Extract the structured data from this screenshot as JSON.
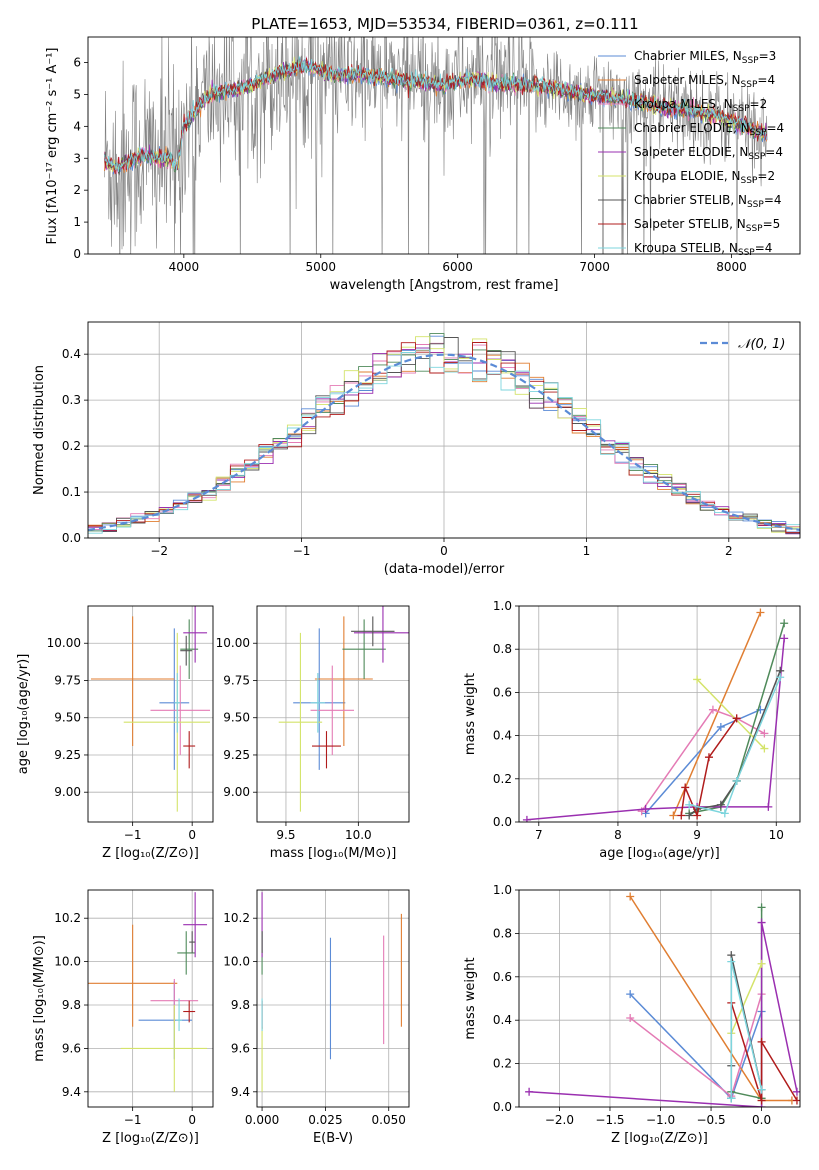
{
  "figure": {
    "title": "PLATE=1653, MJD=53534, FIBERID=0361, z=0.111"
  },
  "series_colors": [
    "#5b8bd6",
    "#e07e32",
    "#e47bb5",
    "#4f8a5a",
    "#9a2fb0",
    "#d4e36a",
    "#555555",
    "#b01c1c",
    "#7dd5dd"
  ],
  "chart_data": [
    {
      "id": "spectrum",
      "type": "line",
      "xlabel": "wavelength [Angstrom, rest frame]",
      "xlim": [
        3300,
        8500
      ],
      "ylim": [
        0,
        6.8
      ],
      "xticks": [
        4000,
        5000,
        6000,
        7000,
        8000
      ],
      "yticks": [
        0,
        1,
        2,
        3,
        4,
        5,
        6
      ],
      "grid": false,
      "legend": "right",
      "continuum": {
        "x": [
          3420,
          3500,
          3600,
          3700,
          3800,
          3900,
          3950,
          4000,
          4100,
          4200,
          4300,
          4500,
          4700,
          4900,
          5100,
          5300,
          5500,
          5700,
          5900,
          6100,
          6300,
          6500,
          6700,
          6900,
          7100,
          7300,
          7500,
          7700,
          7900,
          8100,
          8260
        ],
        "y": [
          2.9,
          2.7,
          2.9,
          3.1,
          3.0,
          3.0,
          2.7,
          4.0,
          4.6,
          5.0,
          5.1,
          5.3,
          5.7,
          5.9,
          5.6,
          5.6,
          5.5,
          5.4,
          5.3,
          5.5,
          5.3,
          5.3,
          5.2,
          5.0,
          4.9,
          4.8,
          4.6,
          4.5,
          4.3,
          4.0,
          3.75
        ]
      },
      "series": [
        {
          "name": "Chabrier MILES, N",
          "sub": "SSP",
          "n": "=3"
        },
        {
          "name": "Salpeter MILES, N",
          "sub": "SSP",
          "n": "=4"
        },
        {
          "name": "Kroupa MILES, N",
          "sub": "SSP",
          "n": "=2"
        },
        {
          "name": "Chabrier ELODIE, N",
          "sub": "SSP",
          "n": "=4"
        },
        {
          "name": "Salpeter ELODIE, N",
          "sub": "SSP",
          "n": "=4"
        },
        {
          "name": "Kroupa ELODIE, N",
          "sub": "SSP",
          "n": "=2"
        },
        {
          "name": "Chabrier STELIB, N",
          "sub": "SSP",
          "n": "=4"
        },
        {
          "name": "Salpeter STELIB, N",
          "sub": "SSP",
          "n": "=5"
        },
        {
          "name": "Kroupa STELIB, N",
          "sub": "SSP",
          "n": "=4"
        }
      ]
    },
    {
      "id": "residuals",
      "type": "step",
      "xlabel": "(data-model)/error",
      "ylabel": "Normed distribution",
      "xlim": [
        -2.5,
        2.5
      ],
      "ylim": [
        0,
        0.47
      ],
      "xticks": [
        -2,
        -1,
        0,
        1,
        2
      ],
      "yticks": [
        0.0,
        0.1,
        0.2,
        0.3,
        0.4
      ],
      "grid": true,
      "legend": "top-right",
      "reference": {
        "name": "𝒩(0, 1)",
        "mean": 0,
        "sigma": 1,
        "color": "#5b8bd6"
      },
      "bin_width": 0.1
    },
    {
      "id": "age_vs_Z",
      "type": "errorbar",
      "xlabel": "Z [log₁₀(Z/Z⊙)]",
      "xlim": [
        -1.75,
        0.35
      ],
      "ylim": [
        8.8,
        10.25
      ],
      "xticks": [
        -1,
        0
      ],
      "yticks": [
        9.0,
        9.25,
        9.5,
        9.75,
        10.0
      ],
      "grid": true,
      "points": [
        {
          "x": -0.3,
          "y": 9.6,
          "xerr": [
            0.25,
            0.25
          ],
          "yerr": [
            0.45,
            0.5
          ]
        },
        {
          "x": -1.0,
          "y": 9.76,
          "xerr": [
            0.7,
            0.7
          ],
          "yerr": [
            0.45,
            0.42
          ]
        },
        {
          "x": -0.2,
          "y": 9.55,
          "xerr": [
            0.5,
            0.5
          ],
          "yerr": [
            0.3,
            0.3
          ]
        },
        {
          "x": -0.05,
          "y": 9.96,
          "xerr": [
            0.15,
            0.15
          ],
          "yerr": [
            0.2,
            0.2
          ]
        },
        {
          "x": 0.05,
          "y": 10.07,
          "xerr": [
            0.2,
            0.2
          ],
          "yerr": [
            0.2,
            0.2
          ]
        },
        {
          "x": -0.25,
          "y": 9.47,
          "xerr": [
            0.9,
            0.55
          ],
          "yerr": [
            0.6,
            0.6
          ]
        },
        {
          "x": -0.1,
          "y": 9.95,
          "xerr": [
            0.1,
            0.1
          ],
          "yerr": [
            0.1,
            0.1
          ]
        },
        {
          "x": -0.05,
          "y": 9.31,
          "xerr": [
            0.1,
            0.1
          ],
          "yerr": [
            0.15,
            0.1
          ]
        },
        {
          "x": -0.25,
          "y": 9.6,
          "xerr": [
            0.05,
            0.05
          ],
          "yerr": [
            0.2,
            0.2
          ]
        }
      ]
    },
    {
      "id": "age_vs_mass",
      "type": "errorbar",
      "xlabel": "mass [log₁₀(M/M⊙)]",
      "xlim": [
        9.3,
        10.35
      ],
      "ylim": [
        8.8,
        10.25
      ],
      "xticks": [
        9.5,
        10.0
      ],
      "yticks": [
        9.0,
        9.25,
        9.5,
        9.75,
        10.0
      ],
      "grid": true,
      "points": [
        {
          "x": 9.73,
          "y": 9.6,
          "xerr": [
            0.18,
            0.18
          ],
          "yerr": [
            0.45,
            0.5
          ]
        },
        {
          "x": 9.9,
          "y": 9.76,
          "xerr": [
            0.2,
            0.2
          ],
          "yerr": [
            0.45,
            0.42
          ]
        },
        {
          "x": 9.82,
          "y": 9.55,
          "xerr": [
            0.15,
            0.15
          ],
          "yerr": [
            0.3,
            0.3
          ]
        },
        {
          "x": 10.04,
          "y": 9.96,
          "xerr": [
            0.15,
            0.15
          ],
          "yerr": [
            0.2,
            0.2
          ]
        },
        {
          "x": 10.17,
          "y": 10.07,
          "xerr": [
            0.2,
            0.2
          ],
          "yerr": [
            0.2,
            0.2
          ]
        },
        {
          "x": 9.6,
          "y": 9.47,
          "xerr": [
            0.15,
            0.15
          ],
          "yerr": [
            0.6,
            0.6
          ]
        },
        {
          "x": 10.1,
          "y": 10.08,
          "xerr": [
            0.15,
            0.15
          ],
          "yerr": [
            0.1,
            0.1
          ]
        },
        {
          "x": 9.78,
          "y": 9.31,
          "xerr": [
            0.1,
            0.1
          ],
          "yerr": [
            0.15,
            0.1
          ]
        },
        {
          "x": 9.72,
          "y": 9.6,
          "xerr": [
            0.05,
            0.05
          ],
          "yerr": [
            0.2,
            0.2
          ]
        }
      ]
    },
    {
      "id": "weight_vs_age",
      "type": "line",
      "xlabel": "age  [log₁₀(age/yr)]",
      "ylabel": "mass weight",
      "xlim": [
        6.75,
        10.3
      ],
      "ylim": [
        0,
        1.0
      ],
      "xticks": [
        7,
        8,
        9,
        10
      ],
      "yticks": [
        0.0,
        0.2,
        0.4,
        0.6,
        0.8,
        1.0
      ],
      "grid": true,
      "series": [
        {
          "x": [
            8.35,
            9.3,
            9.8
          ],
          "y": [
            0.04,
            0.44,
            0.52
          ]
        },
        {
          "x": [
            8.7,
            9.8
          ],
          "y": [
            0.03,
            0.97
          ]
        },
        {
          "x": [
            8.3,
            9.2,
            9.5,
            9.85
          ],
          "y": [
            0.05,
            0.52,
            0.48,
            0.41
          ]
        },
        {
          "x": [
            8.9,
            9.3,
            9.5,
            10.1
          ],
          "y": [
            0.04,
            0.07,
            0.19,
            0.92
          ]
        },
        {
          "x": [
            6.85,
            8.35,
            9.0,
            9.9,
            10.1
          ],
          "y": [
            0.01,
            0.06,
            0.07,
            0.07,
            0.85
          ]
        },
        {
          "x": [
            9.0,
            9.85
          ],
          "y": [
            0.66,
            0.34
          ]
        },
        {
          "x": [
            8.9,
            9.0,
            9.3,
            9.5,
            10.05
          ],
          "y": [
            0.03,
            0.06,
            0.08,
            0.19,
            0.7
          ]
        },
        {
          "x": [
            8.8,
            8.85,
            9.0,
            9.15,
            9.5
          ],
          "y": [
            0.03,
            0.16,
            0.03,
            0.3,
            0.48
          ]
        },
        {
          "x": [
            8.9,
            9.35,
            9.5,
            10.05
          ],
          "y": [
            0.08,
            0.04,
            0.19,
            0.67
          ]
        }
      ]
    },
    {
      "id": "mass_vs_Z",
      "type": "errorbar",
      "xlabel": "Z [log₁₀(Z/Z⊙)]",
      "ylabel": "mass [log₁₀(M/M⊙)]",
      "xlim": [
        -1.75,
        0.35
      ],
      "ylim": [
        9.33,
        10.33
      ],
      "xticks": [
        -1,
        0
      ],
      "yticks": [
        9.4,
        9.6,
        9.8,
        10.0,
        10.2
      ],
      "grid": true,
      "points": [
        {
          "x": -0.3,
          "y": 9.73,
          "xerr": [
            0.6,
            0.3
          ],
          "yerr": [
            0.18,
            0.18
          ]
        },
        {
          "x": -1.0,
          "y": 9.9,
          "xerr": [
            0.75,
            0.75
          ],
          "yerr": [
            0.2,
            0.27
          ]
        },
        {
          "x": -0.3,
          "y": 9.82,
          "xerr": [
            0.4,
            0.4
          ],
          "yerr": [
            0.1,
            0.1
          ]
        },
        {
          "x": -0.1,
          "y": 10.04,
          "xerr": [
            0.15,
            0.15
          ],
          "yerr": [
            0.1,
            0.1
          ]
        },
        {
          "x": 0.05,
          "y": 10.17,
          "xerr": [
            0.2,
            0.2
          ],
          "yerr": [
            0.15,
            0.15
          ]
        },
        {
          "x": -0.3,
          "y": 9.6,
          "xerr": [
            0.9,
            0.55
          ],
          "yerr": [
            0.2,
            0.2
          ]
        },
        {
          "x": 0.0,
          "y": 10.09,
          "xerr": [
            0.05,
            0.05
          ],
          "yerr": [
            0.05,
            0.05
          ]
        },
        {
          "x": -0.05,
          "y": 9.77,
          "xerr": [
            0.1,
            0.1
          ],
          "yerr": [
            0.05,
            0.05
          ]
        },
        {
          "x": -0.22,
          "y": 9.73,
          "xerr": [
            0.05,
            0.05
          ],
          "yerr": [
            0.05,
            0.1
          ]
        }
      ]
    },
    {
      "id": "mass_vs_EBV",
      "type": "errorbar",
      "xlabel": "E(B-V)",
      "xlim": [
        -0.002,
        0.058
      ],
      "ylim": [
        9.33,
        10.33
      ],
      "xticks": [
        0.0,
        0.025,
        0.05
      ],
      "yticks": [
        9.4,
        9.6,
        9.8,
        10.0,
        10.2
      ],
      "grid": true,
      "points": [
        {
          "x": 0.027,
          "y": 9.73,
          "xerr": [
            0,
            0
          ],
          "yerr": [
            0.18,
            0.38
          ]
        },
        {
          "x": 0.055,
          "y": 9.9,
          "xerr": [
            0,
            0
          ],
          "yerr": [
            0.2,
            0.32
          ]
        },
        {
          "x": 0.048,
          "y": 9.82,
          "xerr": [
            0,
            0
          ],
          "yerr": [
            0.2,
            0.3
          ]
        },
        {
          "x": 0.0,
          "y": 10.04,
          "xerr": [
            0,
            0
          ],
          "yerr": [
            0.1,
            0.1
          ]
        },
        {
          "x": 0.0,
          "y": 10.17,
          "xerr": [
            0,
            0
          ],
          "yerr": [
            0.15,
            0.15
          ]
        },
        {
          "x": 0.0,
          "y": 9.6,
          "xerr": [
            0,
            0
          ],
          "yerr": [
            0.2,
            0.1
          ]
        },
        {
          "x": 0.0,
          "y": 10.09,
          "xerr": [
            0,
            0
          ],
          "yerr": [
            0.05,
            0.05
          ]
        },
        {
          "x": 0.0,
          "y": 9.77,
          "xerr": [
            0,
            0
          ],
          "yerr": [
            0.08,
            0.05
          ]
        },
        {
          "x": 0.0,
          "y": 9.73,
          "xerr": [
            0,
            0
          ],
          "yerr": [
            0.05,
            0.1
          ]
        }
      ]
    },
    {
      "id": "weight_vs_Z",
      "type": "line",
      "xlabel": "Z [log₁₀(Z/Z⊙)]",
      "ylabel": "mass weight",
      "xlim": [
        -2.4,
        0.38
      ],
      "ylim": [
        0,
        1.0
      ],
      "xticks": [
        -2.0,
        -1.5,
        -1.0,
        -0.5,
        0.0
      ],
      "yticks": [
        0.0,
        0.2,
        0.4,
        0.6,
        0.8,
        1.0
      ],
      "grid": true,
      "series": [
        {
          "x": [
            -1.3,
            -0.3,
            0.0
          ],
          "y": [
            0.52,
            0.04,
            0.44
          ]
        },
        {
          "x": [
            -1.3,
            0.0,
            0.3
          ],
          "y": [
            0.97,
            0.03,
            0.03
          ]
        },
        {
          "x": [
            -1.3,
            -0.3,
            0.0
          ],
          "y": [
            0.41,
            0.05,
            0.52
          ]
        },
        {
          "x": [
            -0.3,
            0.0,
            0.0
          ],
          "y": [
            0.07,
            0.04,
            0.92
          ]
        },
        {
          "x": [
            -2.3,
            0.0,
            0.0,
            0.35
          ],
          "y": [
            0.07,
            0.0,
            0.85,
            0.07
          ]
        },
        {
          "x": [
            -0.3,
            0.0
          ],
          "y": [
            0.34,
            0.66
          ]
        },
        {
          "x": [
            -0.3,
            -0.3,
            -0.3,
            0.0
          ],
          "y": [
            0.04,
            0.19,
            0.7,
            0.08
          ]
        },
        {
          "x": [
            -0.3,
            0.0,
            0.0,
            0.35
          ],
          "y": [
            0.48,
            0.03,
            0.3,
            0.03
          ]
        },
        {
          "x": [
            -0.3,
            -0.3,
            0.0
          ],
          "y": [
            0.04,
            0.67,
            0.08
          ]
        }
      ]
    }
  ]
}
